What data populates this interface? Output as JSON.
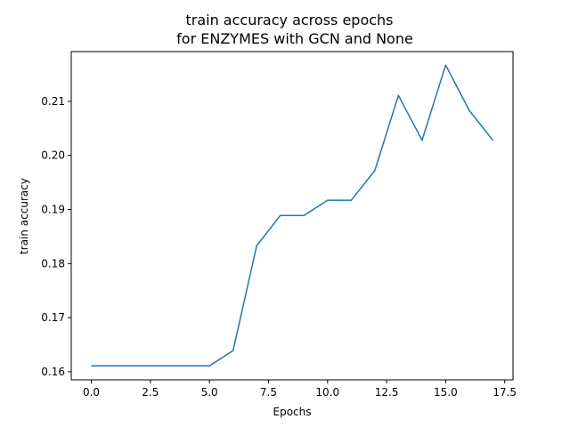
{
  "chart_data": {
    "type": "line",
    "title_lines": [
      "train accuracy across epochs",
      "for ENZYMES with GCN and None"
    ],
    "xlabel": "Epochs",
    "ylabel": "train accuracy",
    "xlim": [
      -0.85,
      17.85
    ],
    "ylim": [
      0.1585,
      0.2192
    ],
    "xticks": [
      0.0,
      2.5,
      5.0,
      7.5,
      10.0,
      12.5,
      15.0,
      17.5
    ],
    "xtick_labels": [
      "0.0",
      "2.5",
      "5.0",
      "7.5",
      "10.0",
      "12.5",
      "15.0",
      "17.5"
    ],
    "yticks": [
      0.16,
      0.17,
      0.18,
      0.19,
      0.2,
      0.21
    ],
    "ytick_labels": [
      "0.16",
      "0.17",
      "0.18",
      "0.19",
      "0.20",
      "0.21"
    ],
    "grid": false,
    "line_color": "#1f77b4",
    "series": [
      {
        "x": [
          0,
          1,
          2,
          3,
          4,
          5,
          6,
          7,
          8,
          9,
          10,
          11,
          12,
          13,
          14,
          15,
          16,
          17
        ],
        "values": [
          0.1611,
          0.1611,
          0.1611,
          0.1611,
          0.1611,
          0.1611,
          0.1639,
          0.1833,
          0.1889,
          0.1889,
          0.1917,
          0.1917,
          0.1972,
          0.2111,
          0.2028,
          0.2167,
          0.2083,
          0.2028
        ]
      }
    ]
  }
}
